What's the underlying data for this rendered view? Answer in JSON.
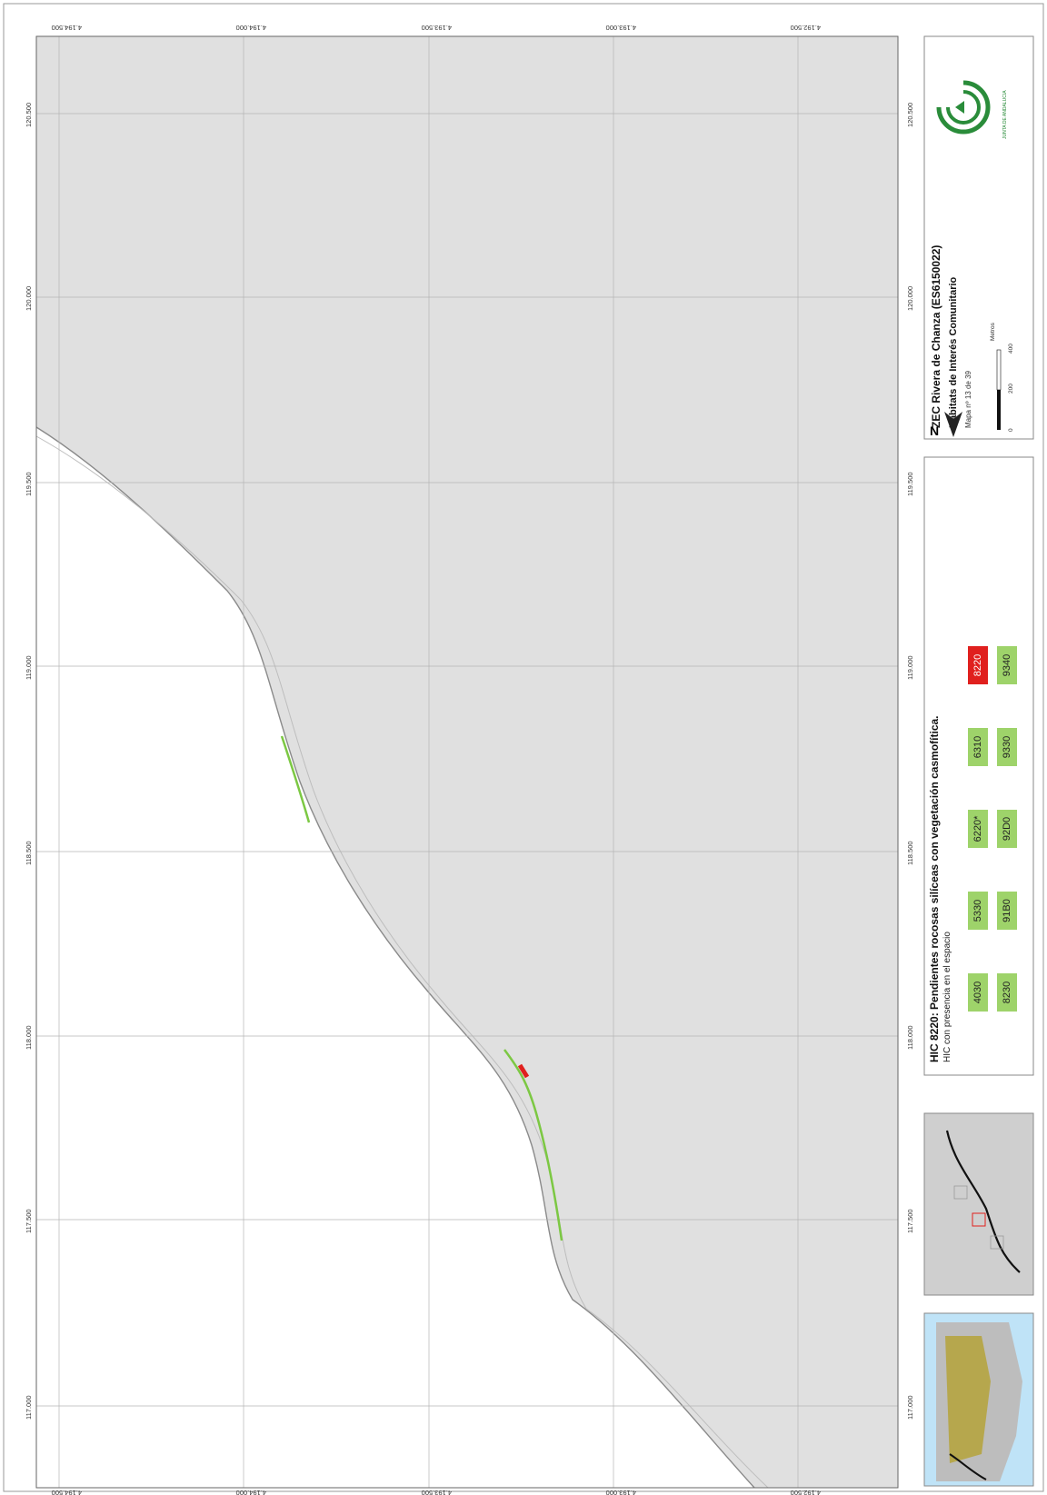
{
  "map": {
    "title": "ZEC Rivera de Chanza (ES6150022)",
    "subtitle": "Hábitats de Interés Comunitario",
    "map_number": "Mapa nº 13 de 39",
    "legend_title": "HIC 8220: Pendientes rocosas silíceas con vegetación casmofítica.",
    "legend_subtitle": "HIC con presencia en el espacio",
    "north_label": "N",
    "scale_labels": [
      "0",
      "200",
      "400"
    ],
    "scale_unit": "Metros",
    "highlight_color": "#e0201e",
    "present_color": "#9ed36a",
    "background_color": "#e0e0e0",
    "hic_codes": [
      {
        "code": "4030",
        "highlight": false
      },
      {
        "code": "5330",
        "highlight": false
      },
      {
        "code": "6220*",
        "highlight": false
      },
      {
        "code": "6310",
        "highlight": false
      },
      {
        "code": "8220",
        "highlight": true
      },
      {
        "code": "8230",
        "highlight": false
      },
      {
        "code": "91B0",
        "highlight": false
      },
      {
        "code": "92D0",
        "highlight": false
      },
      {
        "code": "9330",
        "highlight": false
      },
      {
        "code": "9340",
        "highlight": false
      }
    ],
    "ticks_x": [
      "117.000",
      "117.500",
      "118.000",
      "118.500",
      "119.000",
      "119.500",
      "120.000",
      "120.500"
    ],
    "ticks_y": [
      "4.194.500",
      "4.194.000",
      "4.193.500",
      "4.193.000",
      "4.192.500"
    ],
    "logo_text": "JUNTA DE ANDALUCIA"
  }
}
